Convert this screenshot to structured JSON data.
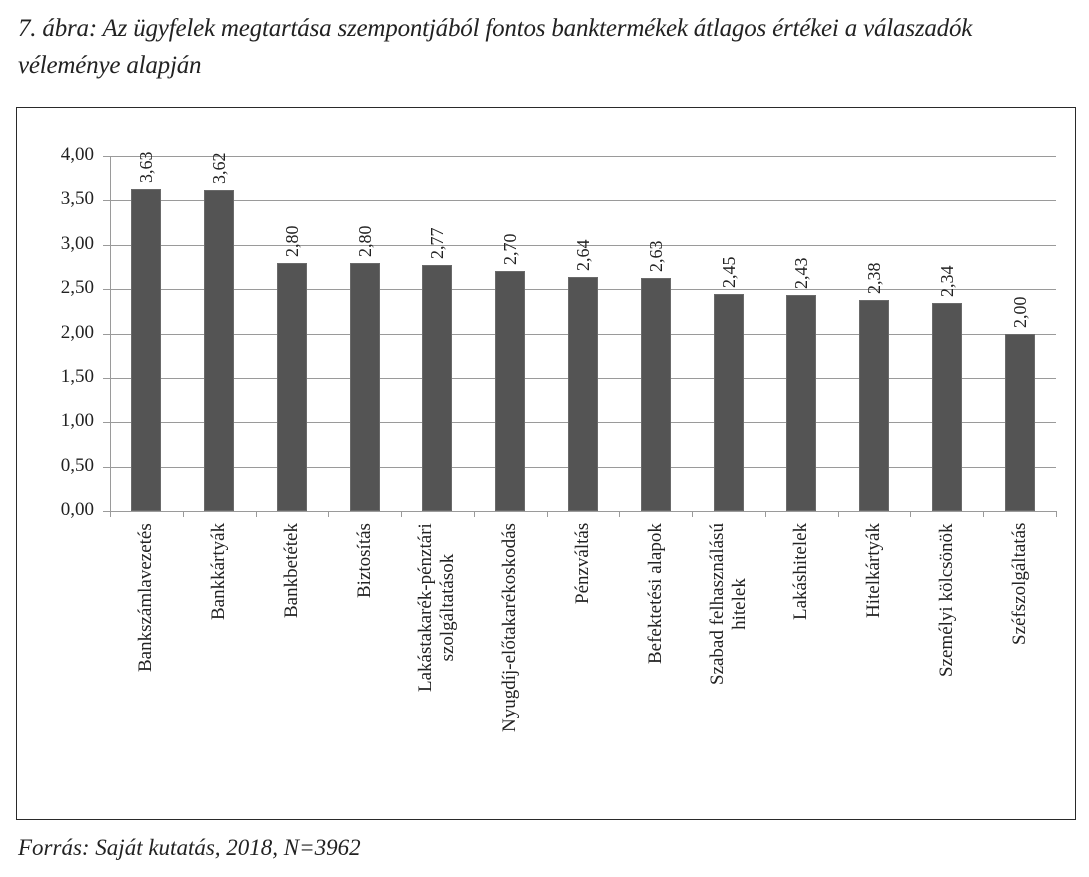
{
  "figure": {
    "caption": "7. ábra: Az ügyfelek megtartása szempontjából fontos banktermékek átlagos értékei a válaszadók véleménye alapján",
    "source": "Forrás: Saját kutatás, 2018, N=3962"
  },
  "chart_data": {
    "type": "bar",
    "title": "7. ábra: Az ügyfelek megtartása szempontjából fontos banktermékek átlagos értékei a válaszadók véleménye alapján",
    "xlabel": "",
    "ylabel": "",
    "ylim": [
      0,
      4
    ],
    "yticks": [
      "0,00",
      "0,50",
      "1,00",
      "1,50",
      "2,00",
      "2,50",
      "3,00",
      "3,50",
      "4,00"
    ],
    "grid": true,
    "legend": null,
    "bar_color": "#545454",
    "categories": [
      "Bankszámlavezetés",
      "Bankkártyák",
      "Bankbetétek",
      "Biztosítás",
      "Lakástakarék-pénztári szolgáltatások",
      "Nyugdíj-előtakarékoskodás",
      "Pénzváltás",
      "Befektetési alapok",
      "Szabad felhasználású hitelek",
      "Lakáshitelek",
      "Hitelkártyák",
      "Személyi kölcsönök",
      "Széfszolgáltatás"
    ],
    "category_display": [
      "Bankszámlavezetés",
      "Bankkártyák",
      "Bankbetétek",
      "Biztosítás",
      "Lakástakarék-pénztári\nszolgáltatások",
      "Nyugdíj-előtakarékoskodás",
      "Pénzváltás",
      "Befektetési alapok",
      "Szabad felhasználású\nhitelek",
      "Lakáshitelek",
      "Hitelkártyák",
      "Személyi kölcsönök",
      "Széfszolgáltatás"
    ],
    "values": [
      3.63,
      3.62,
      2.8,
      2.8,
      2.77,
      2.7,
      2.64,
      2.63,
      2.45,
      2.43,
      2.38,
      2.34,
      2.0
    ],
    "value_labels": [
      "3,63",
      "3,62",
      "2,80",
      "2,80",
      "2,77",
      "2,70",
      "2,64",
      "2,63",
      "2,45",
      "2,43",
      "2,38",
      "2,34",
      "2,00"
    ],
    "source": "Forrás: Saját kutatás, 2018, N=3962"
  }
}
